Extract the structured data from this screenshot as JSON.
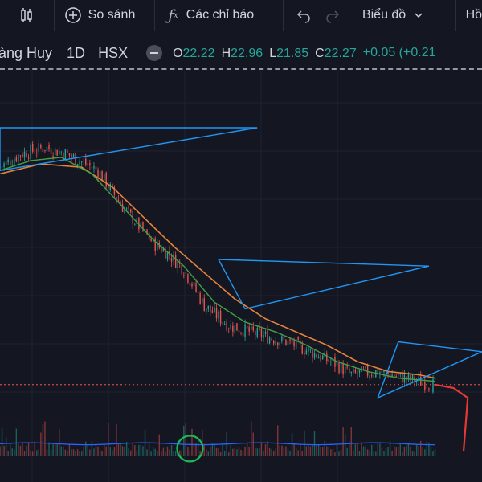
{
  "toolbar": {
    "compare_label": "So sánh",
    "indicators_label": "Các chỉ báo",
    "chart_type_label": "Biểu đồ",
    "truncated_label": "Hồ",
    "icons": [
      "candles-icon",
      "plus-circle-icon",
      "fx-icon",
      "undo-icon",
      "redo-icon",
      "chevron-down-icon"
    ]
  },
  "legend": {
    "symbol": "àng Huy",
    "interval": "1D",
    "exchange": "HSX",
    "o_label": "O",
    "o_value": "22.22",
    "h_label": "H",
    "h_value": "22.96",
    "l_label": "L",
    "l_value": "21.85",
    "c_label": "C",
    "c_value": "22.27",
    "change": "+0.05 (+0.21",
    "change_color": "#26a69a"
  },
  "chart_data": {
    "type": "candlestick",
    "title": "",
    "xlabel": "",
    "ylabel": "",
    "grid": true,
    "colors": {
      "up": "#26a69a",
      "down": "#ef5350",
      "ma_fast": "#43a047",
      "ma_slow": "#e5833a",
      "drawing": "#2196f3",
      "annotation_red": "#e53935",
      "annotation_green": "#1db954",
      "last_price_line": "#ef5350",
      "volume_ma": "#2962ff"
    },
    "price_range": [
      0,
      100
    ],
    "price_trend": [
      [
        0,
        78
      ],
      [
        10,
        82
      ],
      [
        22,
        84
      ],
      [
        33,
        82
      ],
      [
        48,
        77
      ],
      [
        60,
        66
      ],
      [
        75,
        55
      ],
      [
        82,
        52
      ],
      [
        90,
        47
      ],
      [
        100,
        36
      ],
      [
        112,
        30
      ],
      [
        128,
        27
      ],
      [
        140,
        25
      ],
      [
        152,
        22
      ],
      [
        165,
        18
      ],
      [
        172,
        15
      ],
      [
        185,
        16
      ],
      [
        198,
        14
      ],
      [
        205,
        13
      ],
      [
        213,
        12
      ]
    ],
    "ma_fast_trend": [
      [
        0,
        77
      ],
      [
        15,
        80
      ],
      [
        30,
        81
      ],
      [
        45,
        76
      ],
      [
        60,
        66
      ],
      [
        75,
        56
      ],
      [
        90,
        48
      ],
      [
        105,
        37
      ],
      [
        120,
        31
      ],
      [
        135,
        28
      ],
      [
        150,
        24
      ],
      [
        165,
        19
      ],
      [
        180,
        16
      ],
      [
        195,
        14
      ],
      [
        213,
        13
      ]
    ],
    "ma_slow_trend": [
      [
        0,
        76
      ],
      [
        20,
        79
      ],
      [
        40,
        78
      ],
      [
        55,
        72
      ],
      [
        70,
        63
      ],
      [
        85,
        54
      ],
      [
        100,
        46
      ],
      [
        115,
        38
      ],
      [
        130,
        32
      ],
      [
        145,
        28
      ],
      [
        160,
        24
      ],
      [
        175,
        19
      ],
      [
        190,
        16
      ],
      [
        205,
        15
      ],
      [
        213,
        14
      ]
    ],
    "volume_range": [
      0,
      100
    ],
    "volume_ma_level": 26,
    "annotations": [
      {
        "type": "triangle",
        "points": [
          [
            0,
            90
          ],
          [
            126,
            90
          ],
          [
            0,
            77
          ]
        ]
      },
      {
        "type": "triangle",
        "points": [
          [
            107,
            50
          ],
          [
            210,
            48
          ],
          [
            120,
            35
          ]
        ]
      },
      {
        "type": "triangle",
        "points": [
          [
            195,
            25
          ],
          [
            236,
            22
          ],
          [
            185,
            8
          ]
        ]
      },
      {
        "type": "circle",
        "x": 93,
        "y": 4
      },
      {
        "type": "freehand",
        "points": [
          [
            213,
            12
          ],
          [
            222,
            11
          ],
          [
            229,
            8
          ],
          [
            228,
            0
          ],
          [
            227,
            -8
          ]
        ]
      }
    ]
  }
}
